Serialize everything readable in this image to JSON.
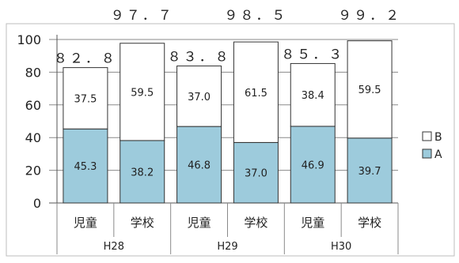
{
  "chart_data": {
    "type": "bar",
    "stacked": true,
    "groups": [
      "H28",
      "H29",
      "H30"
    ],
    "categories": [
      "児童",
      "学校",
      "児童",
      "学校",
      "児童",
      "学校"
    ],
    "series": [
      {
        "name": "A",
        "color": "#9dcbdc",
        "values": [
          45.3,
          38.2,
          46.8,
          37.0,
          46.9,
          39.7
        ]
      },
      {
        "name": "B",
        "color": "#ffffff",
        "values": [
          37.5,
          59.5,
          37.0,
          61.5,
          38.4,
          59.5
        ]
      }
    ],
    "segment_labels": {
      "A": [
        "45.3",
        "38.2",
        "46.8",
        "37.0",
        "46.9",
        "39.7"
      ],
      "B": [
        "37.5",
        "59.5",
        "37.0",
        "61.5",
        "38.4",
        "59.5"
      ]
    },
    "totals": [
      "８２．８",
      "９７．７",
      "８３．８",
      "９８．５",
      "８５．３",
      "９９．２"
    ],
    "ylim": [
      0,
      100
    ],
    "yticks": [
      "0",
      "20",
      "40",
      "60",
      "80",
      "100"
    ],
    "grid": true,
    "legend_position": "right",
    "legend": [
      "B",
      "A"
    ]
  }
}
